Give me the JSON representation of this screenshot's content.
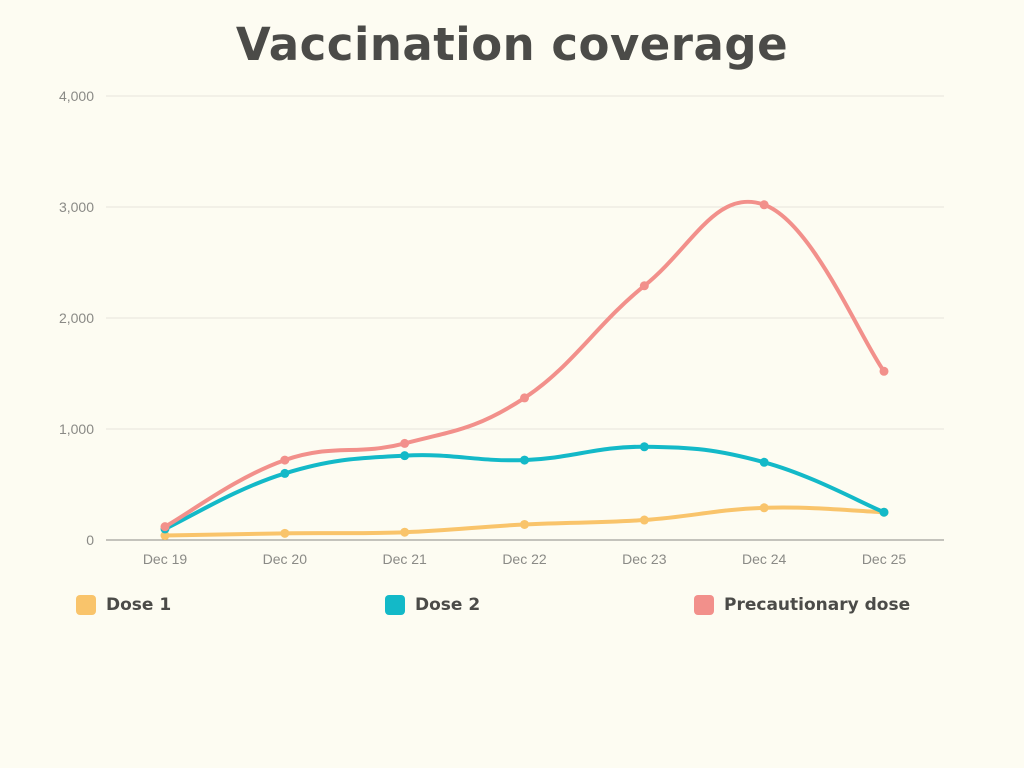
{
  "chart_data": {
    "type": "line",
    "title": "Vaccination coverage",
    "xlabel": "",
    "ylabel": "",
    "categories": [
      "Dec 19",
      "Dec 20",
      "Dec 21",
      "Dec 22",
      "Dec 23",
      "Dec 24",
      "Dec 25"
    ],
    "yticks": [
      "0",
      "1,000",
      "2,000",
      "3,000",
      "4,000"
    ],
    "ylim": [
      0,
      4000
    ],
    "grid": true,
    "legend_position": "bottom",
    "series": [
      {
        "name": "Dose 1",
        "color": "#f9c46b",
        "values": [
          40,
          60,
          70,
          140,
          180,
          290,
          250
        ]
      },
      {
        "name": "Dose 2",
        "color": "#13b9c8",
        "values": [
          100,
          600,
          760,
          720,
          840,
          700,
          250
        ]
      },
      {
        "name": "Precautionary dose",
        "color": "#f2908b",
        "values": [
          120,
          720,
          870,
          1280,
          2290,
          3020,
          1520
        ]
      }
    ]
  }
}
